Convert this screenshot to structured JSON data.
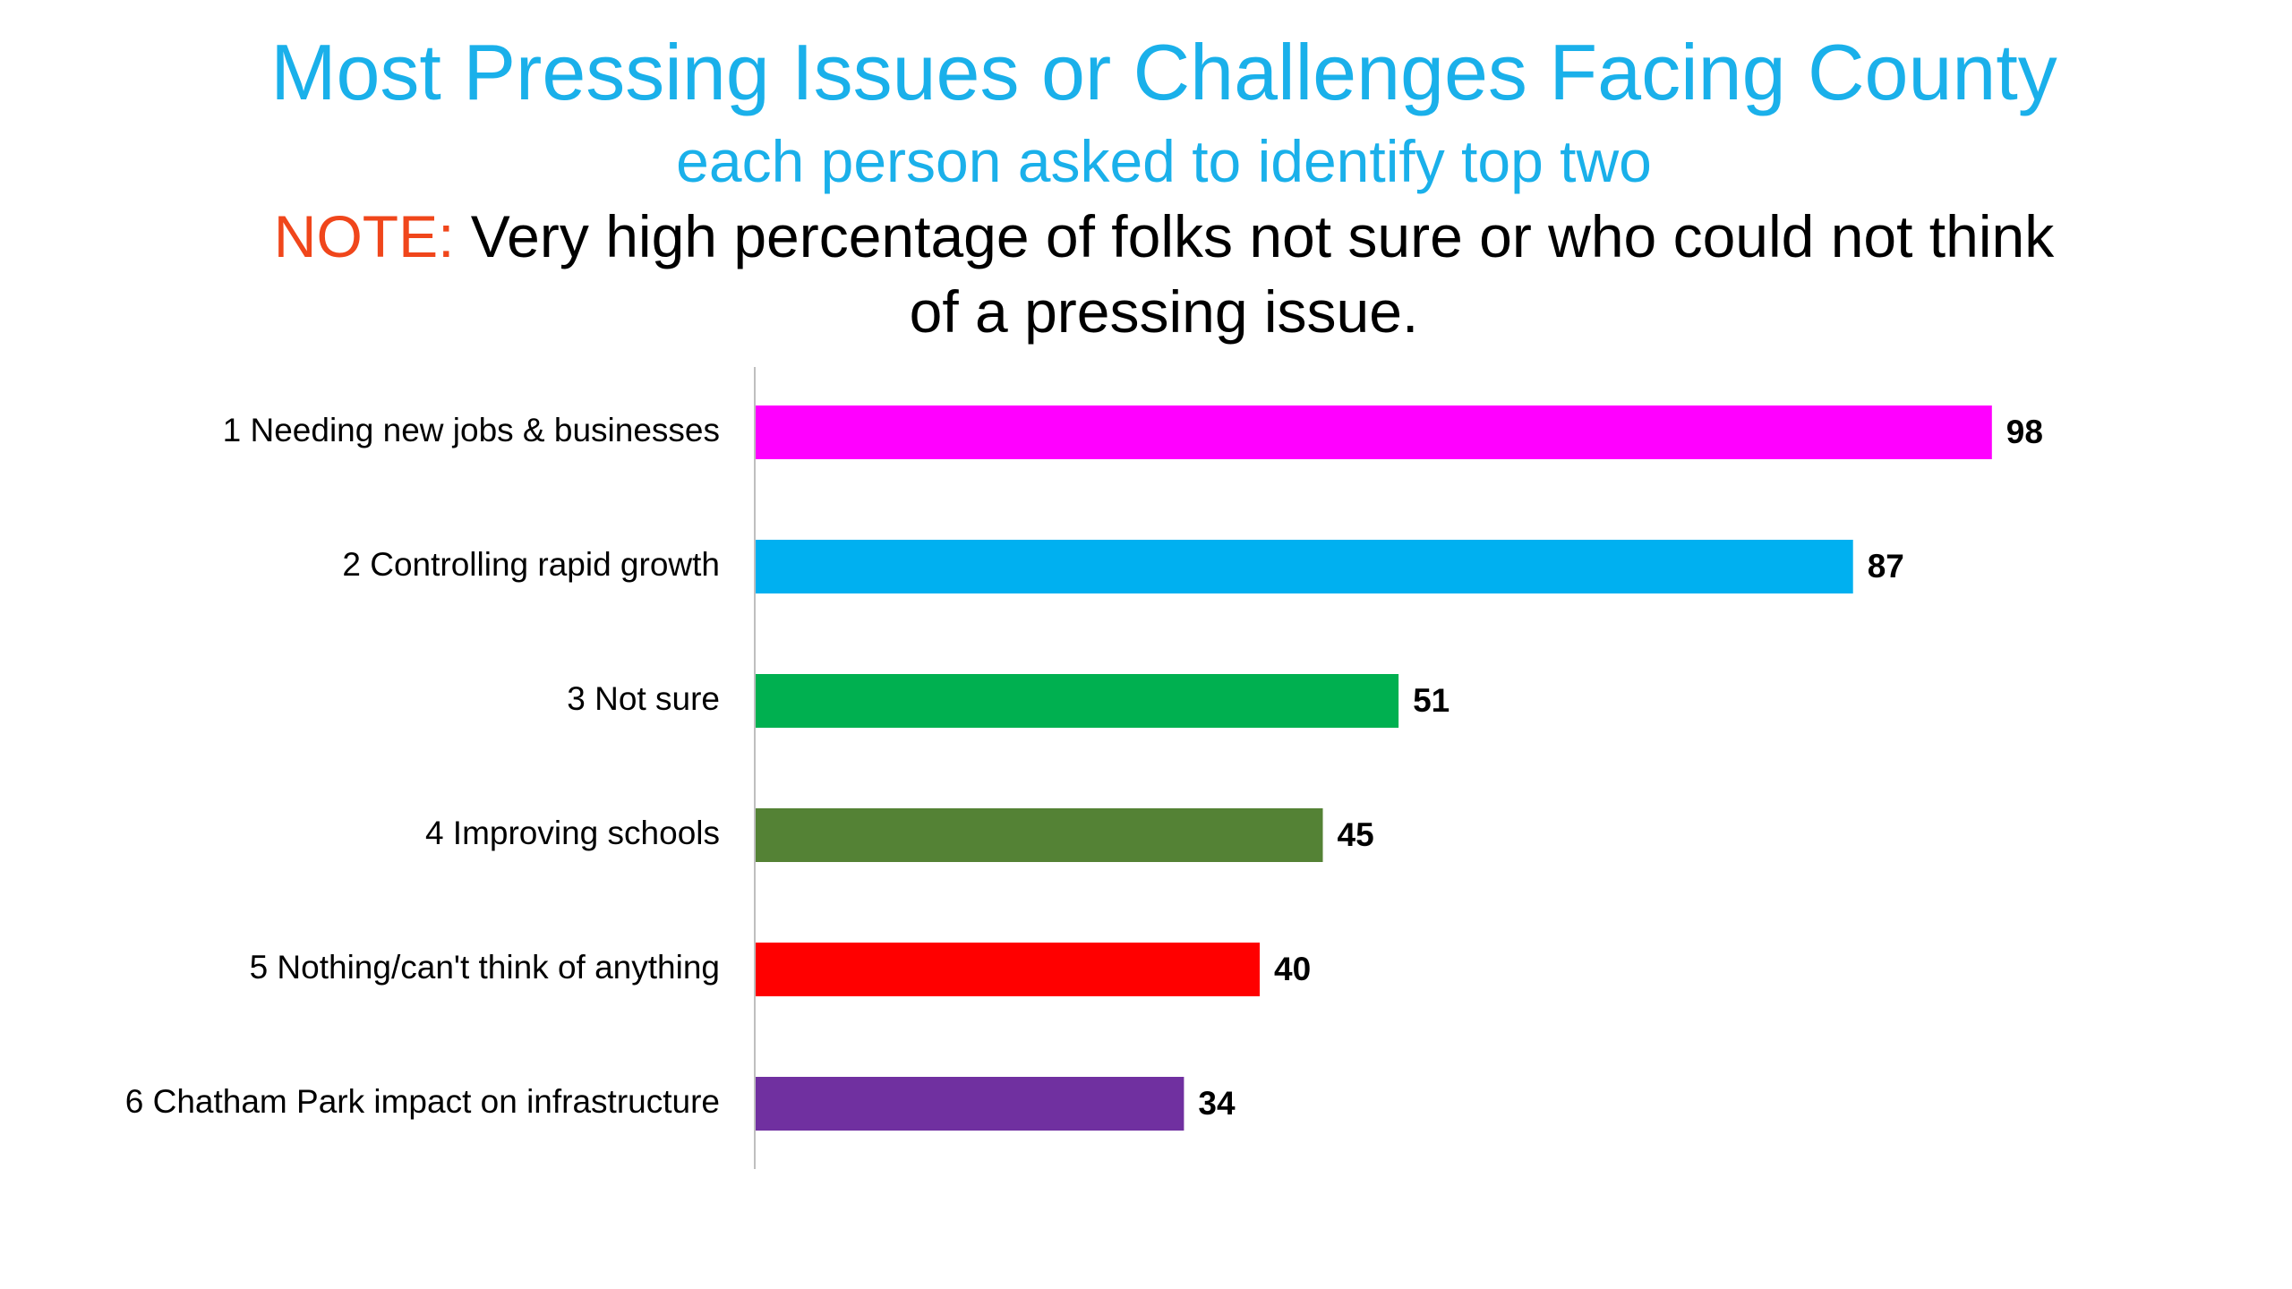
{
  "chart_data": {
    "type": "bar",
    "orientation": "horizontal",
    "title": "Most Pressing Issues or Challenges Facing County",
    "subtitle": "each person asked to identify top two",
    "note": {
      "label": "NOTE:",
      "text": " Very high percentage of folks not sure or who could not think of a pressing issue."
    },
    "categories": [
      "1 Needing new jobs & businesses",
      "2 Controlling rapid growth",
      "3 Not sure",
      "4 Improving schools",
      "5 Nothing/can't think of anything",
      "6 Chatham Park impact on infrastructure"
    ],
    "values": [
      98,
      87,
      51,
      45,
      40,
      34
    ],
    "colors": [
      "#ff00ff",
      "#00b0f0",
      "#00b050",
      "#548235",
      "#ff0000",
      "#7030a0"
    ],
    "xlim": [
      0,
      100
    ],
    "grid": false,
    "legend": "none",
    "data_labels": true
  }
}
